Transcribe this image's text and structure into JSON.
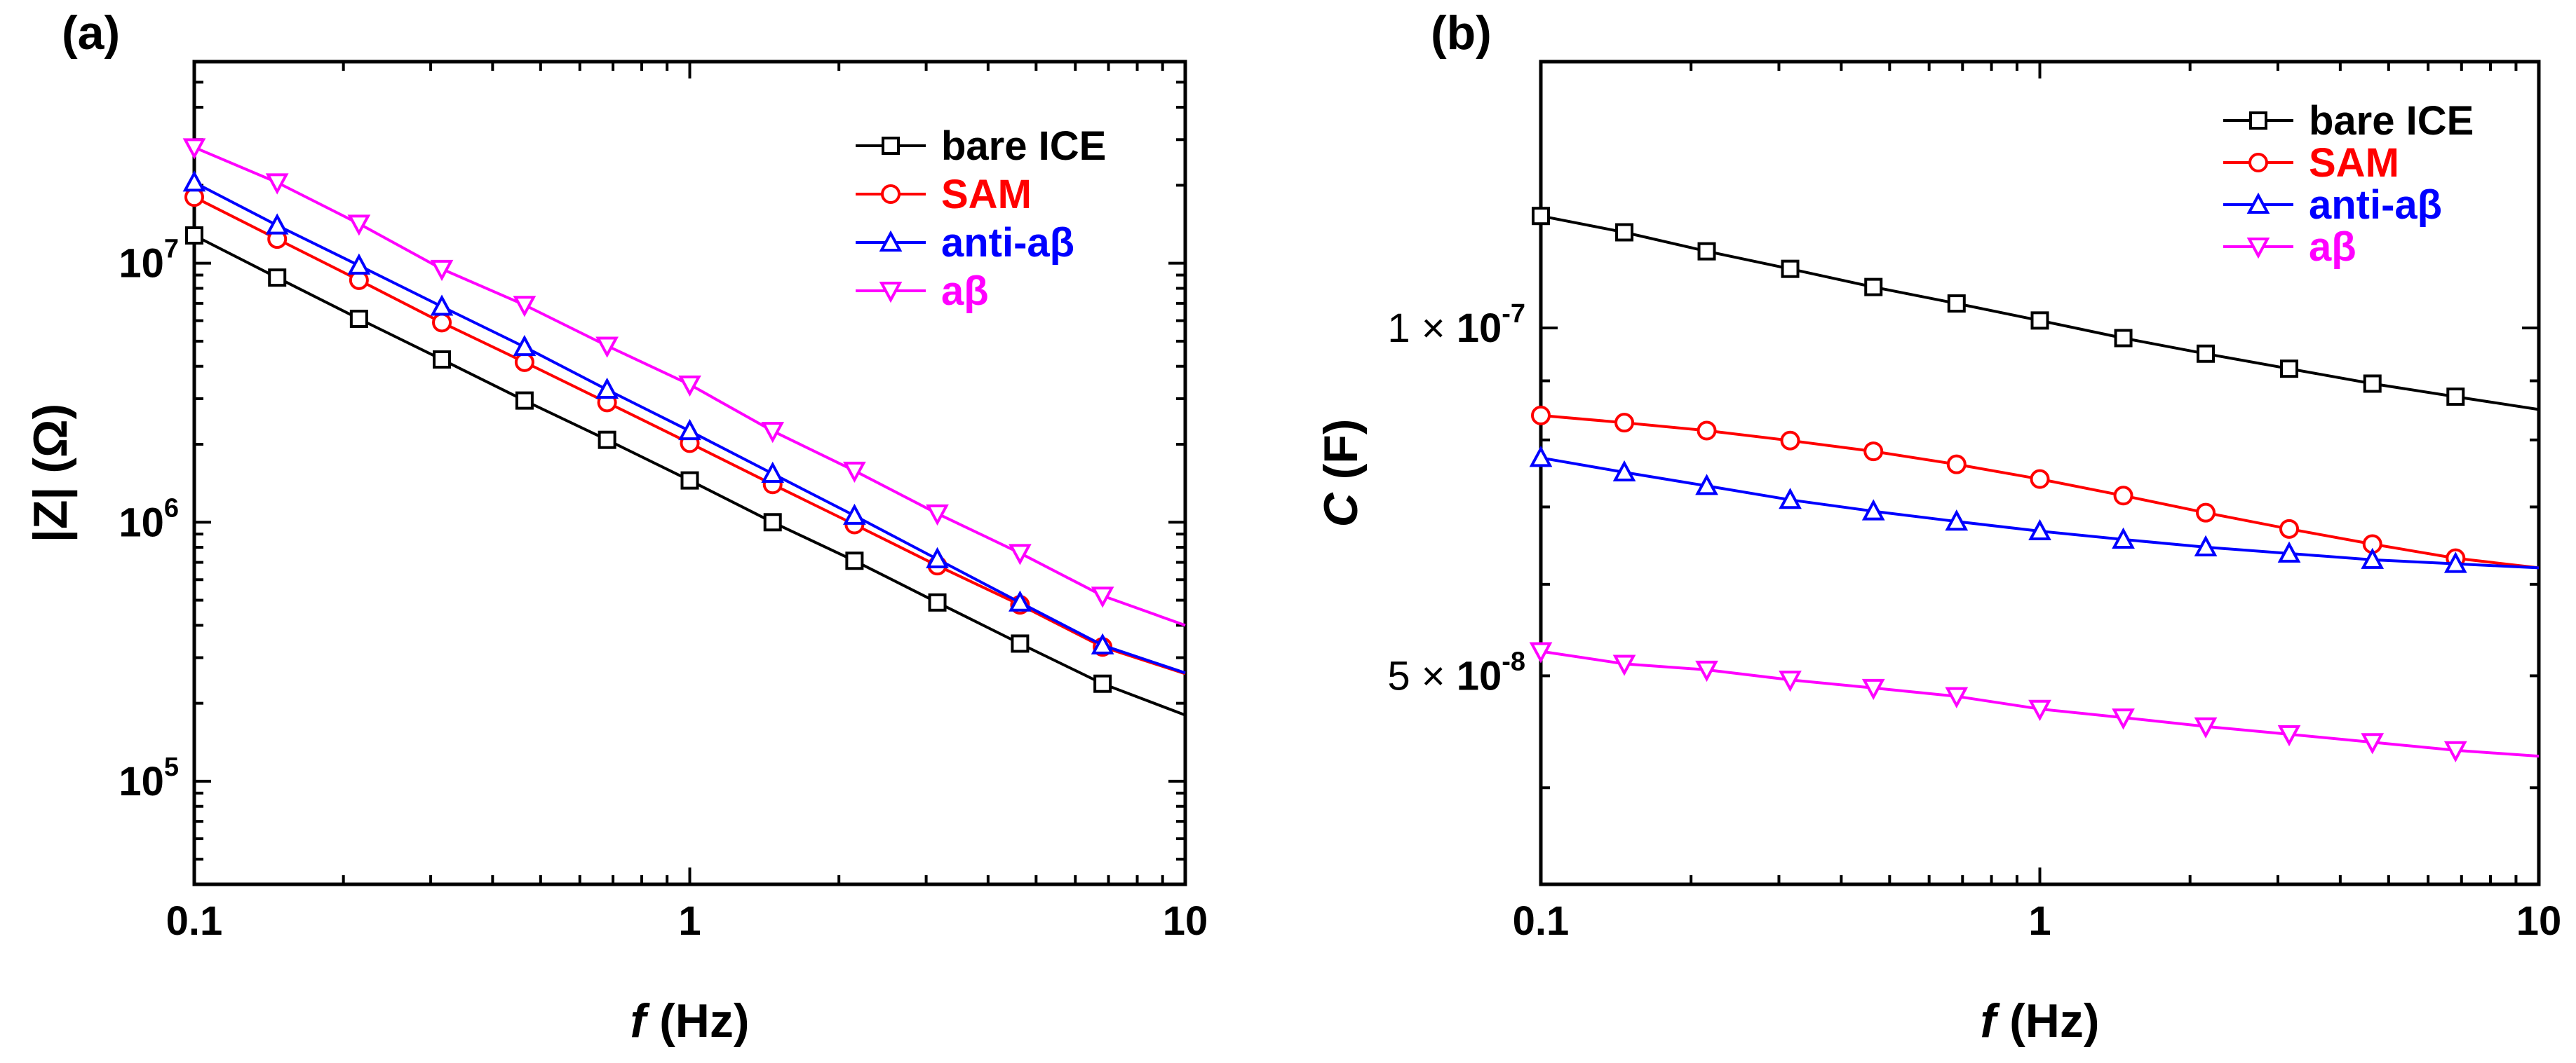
{
  "chart_data": [
    {
      "panel_label": "(a)",
      "type": "line",
      "scale": {
        "x": "log",
        "y": "log"
      },
      "xlabel": {
        "italic": "f",
        "rest": " (Hz)"
      },
      "ylabel": {
        "text": "|Z| (Ω)"
      },
      "xlim": [
        0.1,
        10
      ],
      "ylim": [
        40000,
        60000000
      ],
      "xticks": [
        {
          "value": 0.1,
          "label": "0.1"
        },
        {
          "value": 1,
          "label": "1"
        },
        {
          "value": 10,
          "label": "10"
        }
      ],
      "yticks": [
        {
          "value": 100000,
          "base": "10",
          "exp": "5"
        },
        {
          "value": 1000000,
          "base": "10",
          "exp": "6"
        },
        {
          "value": 10000000,
          "base": "10",
          "exp": "7"
        }
      ],
      "legend_position": "top-right",
      "x": [
        0.1,
        0.147,
        0.215,
        0.316,
        0.464,
        0.681,
        1.0,
        1.47,
        2.15,
        3.16,
        4.64,
        6.81,
        10.0
      ],
      "series": [
        {
          "name": "bare ICE",
          "color": "#000000",
          "marker": "square",
          "values": [
            12800000,
            8800000,
            6100000,
            4250000,
            2950000,
            2080000,
            1450000,
            1000000,
            710000,
            490000,
            340000,
            238000,
            180000
          ]
        },
        {
          "name": "SAM",
          "color": "#ff0000",
          "marker": "circle",
          "values": [
            18000000,
            12400000,
            8600000,
            5900000,
            4150000,
            2900000,
            2020000,
            1400000,
            980000,
            680000,
            480000,
            330000,
            260000
          ]
        },
        {
          "name": "anti-aβ",
          "color": "#0000ff",
          "marker": "triangle-up",
          "values": [
            20500000,
            14000000,
            9800000,
            6800000,
            4750000,
            3250000,
            2250000,
            1540000,
            1060000,
            720000,
            490000,
            335000,
            262000
          ]
        },
        {
          "name": "aβ",
          "color": "#ff00ff",
          "marker": "triangle-down",
          "values": [
            28000000,
            20500000,
            14200000,
            9500000,
            6900000,
            4800000,
            3400000,
            2250000,
            1580000,
            1080000,
            760000,
            520000,
            400000
          ]
        }
      ]
    },
    {
      "panel_label": "(b)",
      "type": "line",
      "scale": {
        "x": "log",
        "y": "log"
      },
      "xlabel": {
        "italic": "f",
        "rest": " (Hz)"
      },
      "ylabel": {
        "italic": "C",
        "rest": " (F)"
      },
      "xlim": [
        0.1,
        10
      ],
      "ylim": [
        3.3e-08,
        1.7e-07
      ],
      "xticks": [
        {
          "value": 0.1,
          "label": "0.1"
        },
        {
          "value": 1,
          "label": "1"
        },
        {
          "value": 10,
          "label": "10"
        }
      ],
      "yticks": [
        {
          "value": 5e-08,
          "mantissa": "5",
          "base": "10",
          "exp": "-8"
        },
        {
          "value": 1e-07,
          "mantissa": "1",
          "base": "10",
          "exp": "-7"
        }
      ],
      "legend_position": "top-right",
      "x": [
        0.1,
        0.147,
        0.215,
        0.316,
        0.464,
        0.681,
        1.0,
        1.47,
        2.15,
        3.16,
        4.64,
        6.81,
        10.0
      ],
      "series": [
        {
          "name": "bare ICE",
          "color": "#000000",
          "marker": "square",
          "values": [
            1.25e-07,
            1.21e-07,
            1.165e-07,
            1.125e-07,
            1.085e-07,
            1.05e-07,
            1.015e-07,
            9.8e-08,
            9.5e-08,
            9.22e-08,
            8.95e-08,
            8.72e-08,
            8.5e-08
          ]
        },
        {
          "name": "SAM",
          "color": "#ff0000",
          "marker": "circle",
          "values": [
            8.4e-08,
            8.28e-08,
            8.15e-08,
            7.99e-08,
            7.82e-08,
            7.62e-08,
            7.4e-08,
            7.16e-08,
            6.92e-08,
            6.7e-08,
            6.5e-08,
            6.32e-08,
            6.2e-08
          ]
        },
        {
          "name": "anti-aβ",
          "color": "#0000ff",
          "marker": "triangle-up",
          "values": [
            7.72e-08,
            7.5e-08,
            7.3e-08,
            7.1e-08,
            6.94e-08,
            6.8e-08,
            6.67e-08,
            6.56e-08,
            6.46e-08,
            6.38e-08,
            6.3e-08,
            6.25e-08,
            6.2e-08
          ]
        },
        {
          "name": "aβ",
          "color": "#ff00ff",
          "marker": "triangle-down",
          "values": [
            5.25e-08,
            5.12e-08,
            5.06e-08,
            4.96e-08,
            4.88e-08,
            4.8e-08,
            4.68e-08,
            4.6e-08,
            4.52e-08,
            4.45e-08,
            4.38e-08,
            4.31e-08,
            4.26e-08
          ]
        }
      ]
    }
  ]
}
